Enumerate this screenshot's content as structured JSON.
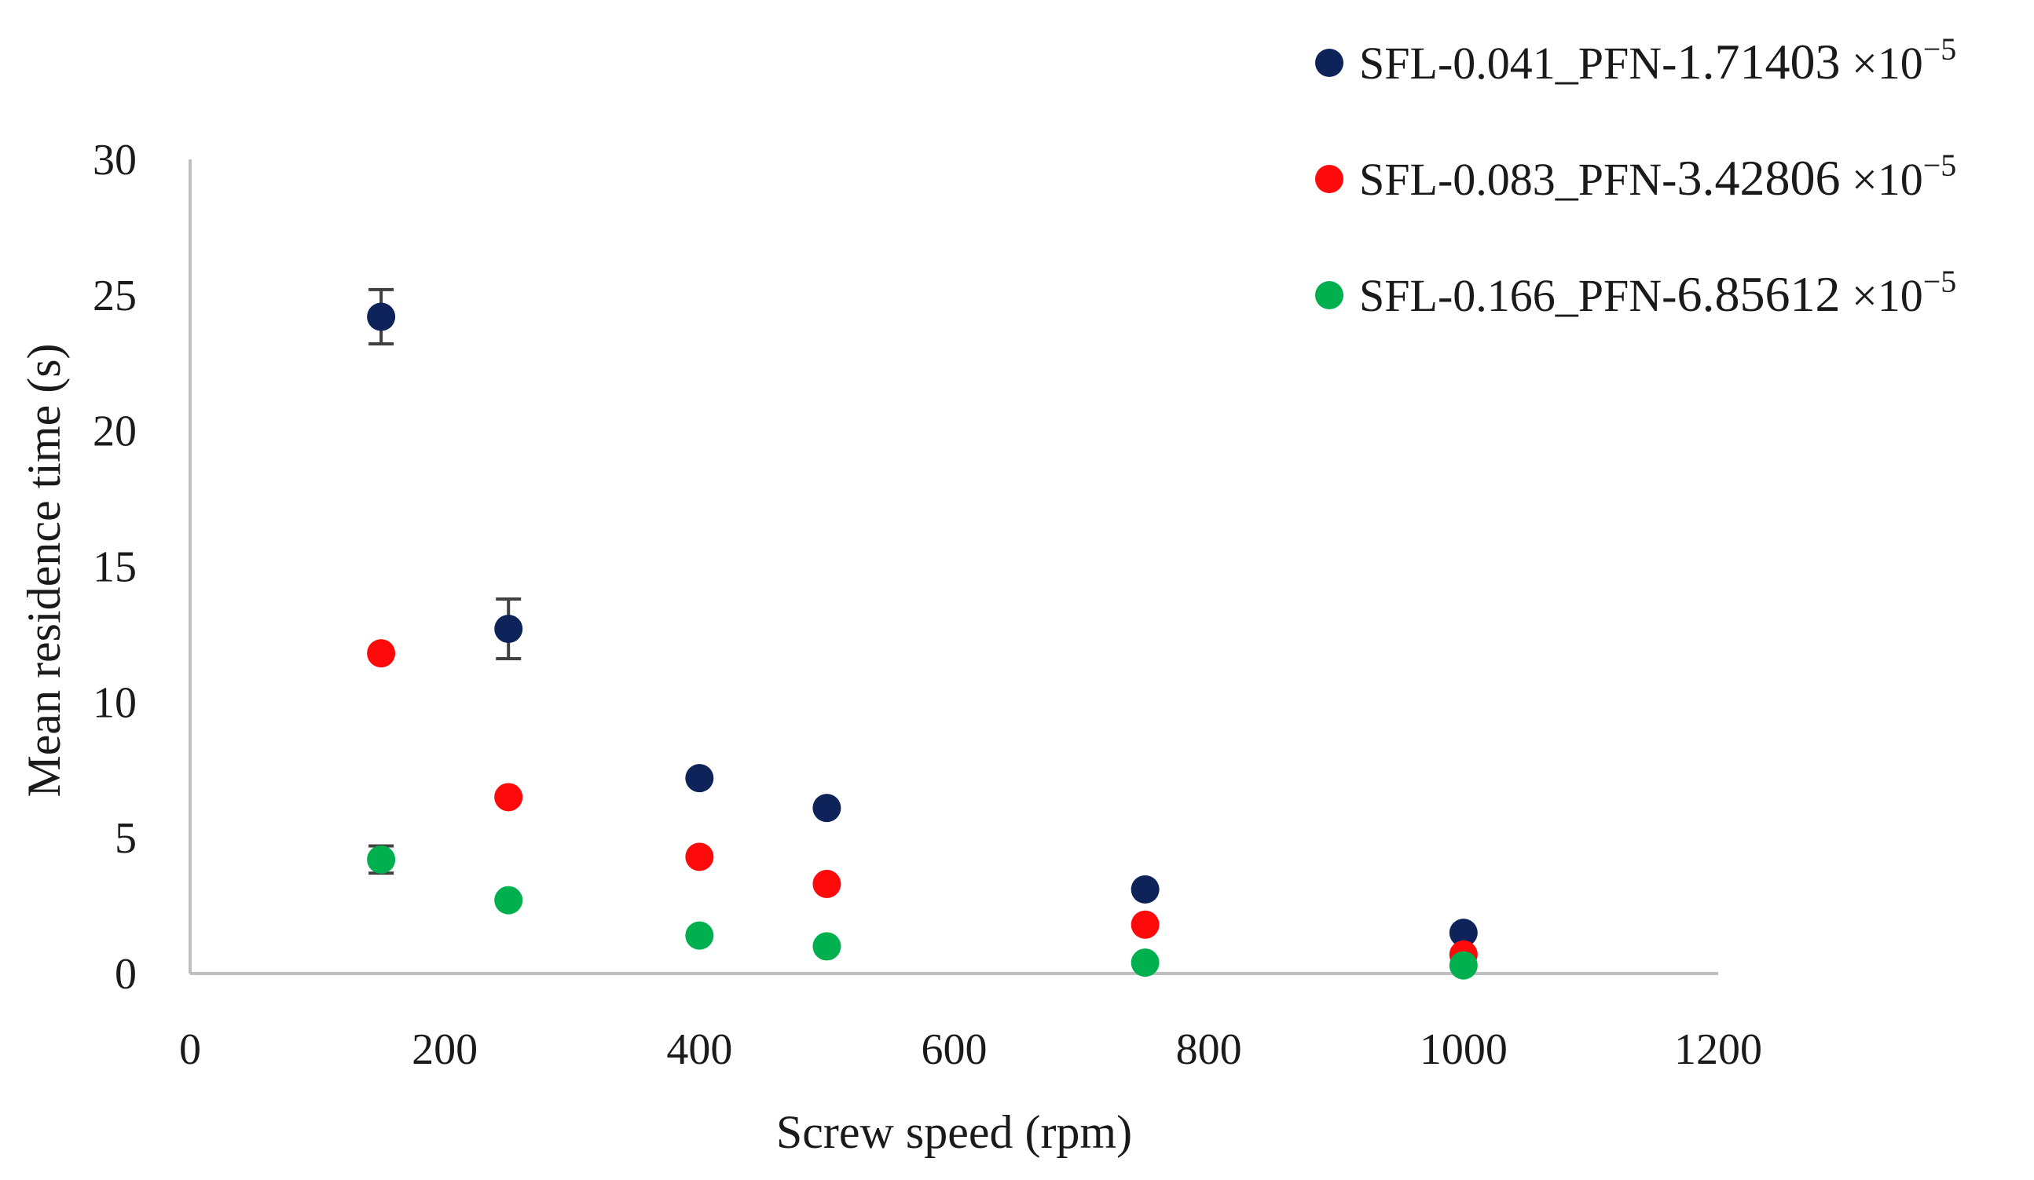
{
  "chart_data": {
    "type": "scatter",
    "title": "",
    "xlabel": "Screw speed (rpm)",
    "ylabel": "Mean residence time (s)",
    "xlim": [
      0,
      1200
    ],
    "ylim": [
      0,
      30
    ],
    "xticks": [
      "0",
      "200",
      "400",
      "600",
      "800",
      "1000",
      "1200"
    ],
    "yticks": [
      "0",
      "5",
      "10",
      "15",
      "20",
      "25",
      "30"
    ],
    "grid": false,
    "legend_position": "top-right",
    "series": [
      {
        "name": "SFL-0.041_PFN-1.71403 ×10−5",
        "legend_prefix": "SFL-0.041_PFN-",
        "legend_number": "1.71403",
        "legend_times": " ×10",
        "legend_exponent": "−5",
        "color": "#0d2359",
        "x": [
          150,
          250,
          400,
          500,
          750,
          1000
        ],
        "y": [
          24.2,
          12.7,
          7.2,
          6.1,
          3.1,
          1.5
        ],
        "error": [
          1.0,
          1.1,
          0,
          0,
          0,
          0
        ]
      },
      {
        "name": "SFL-0.083_PFN-3.42806 ×10−5",
        "legend_prefix": "SFL-0.083_PFN-",
        "legend_number": "3.42806",
        "legend_times": " ×10",
        "legend_exponent": "−5",
        "color": "#ff0a0a",
        "x": [
          150,
          250,
          400,
          500,
          750,
          1000
        ],
        "y": [
          11.8,
          6.5,
          4.3,
          3.3,
          1.8,
          0.7
        ],
        "error": [
          0,
          0,
          0,
          0,
          0,
          0
        ]
      },
      {
        "name": "SFL-0.166_PFN-6.85612 ×10−5",
        "legend_prefix": "SFL-0.166_PFN-",
        "legend_number": "6.85612",
        "legend_times": " ×10",
        "legend_exponent": "−5",
        "color": "#00b04f",
        "x": [
          150,
          250,
          400,
          500,
          750,
          1000
        ],
        "y": [
          4.2,
          2.7,
          1.4,
          1.0,
          0.4,
          0.3
        ],
        "error": [
          0.5,
          0,
          0,
          0,
          0,
          0
        ]
      }
    ]
  }
}
